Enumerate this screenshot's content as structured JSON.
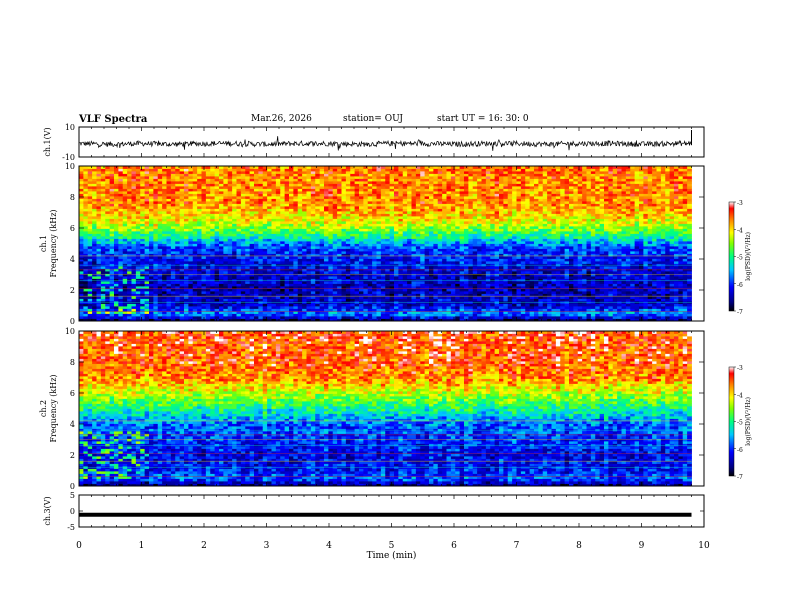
{
  "header": {
    "title": "VLF Spectra",
    "date": "Mar.26, 2026",
    "station": "station= OUJ",
    "start": "start  UT  =   16: 30: 0"
  },
  "chart_data": [
    {
      "type": "line",
      "panel": "waveform-ch1",
      "ylabel": "ch.1(V)",
      "ylim": [
        -10,
        10
      ],
      "yticks": [
        -10,
        10
      ],
      "xlim": [
        0,
        10
      ],
      "x": [
        0,
        0.5,
        1,
        1.5,
        2,
        2.5,
        3,
        3.5,
        4,
        4.5,
        5,
        5.5,
        6,
        6.5,
        7,
        7.5,
        8,
        8.5,
        9,
        9.5,
        9.8
      ],
      "values": [
        -1,
        -1.5,
        -1,
        -1.5,
        -1,
        -1,
        -1.5,
        -1,
        -1,
        -1.5,
        -1,
        -1,
        -1.5,
        -1,
        -1,
        -1.5,
        -1,
        -1,
        -1.5,
        -1,
        -1
      ]
    },
    {
      "type": "heatmap",
      "panel": "spectrogram-ch1",
      "ylabel": "ch.1\nFrequency (kHz)",
      "ylim": [
        0,
        10
      ],
      "yticks": [
        0,
        2,
        4,
        6,
        8,
        10
      ],
      "xlim": [
        0,
        10
      ],
      "x_end": 9.8,
      "colorbar": {
        "label": "log(PSD)(V²/Hz)",
        "range": [
          -7,
          -3
        ],
        "ticks": [
          -3,
          -4,
          -5,
          -6,
          -7
        ]
      },
      "profile": [
        {
          "f": 0,
          "v": -6.8
        },
        {
          "f": 0.5,
          "v": -5.6
        },
        {
          "f": 1,
          "v": -6.3
        },
        {
          "f": 2,
          "v": -6.4
        },
        {
          "f": 3,
          "v": -6.3
        },
        {
          "f": 4,
          "v": -6.1
        },
        {
          "f": 4.8,
          "v": -5.9
        },
        {
          "f": 5.5,
          "v": -5.0
        },
        {
          "f": 6,
          "v": -4.5
        },
        {
          "f": 6.5,
          "v": -4.1
        },
        {
          "f": 7.5,
          "v": -3.7
        },
        {
          "f": 10,
          "v": -3.6
        }
      ]
    },
    {
      "type": "heatmap",
      "panel": "spectrogram-ch2",
      "ylabel": "ch.2\nFrequency (kHz)",
      "ylim": [
        0,
        10
      ],
      "yticks": [
        0,
        2,
        4,
        6,
        8,
        10
      ],
      "xlim": [
        0,
        10
      ],
      "x_end": 9.8,
      "colorbar": {
        "label": "log(PSD)(V²/Hz)",
        "range": [
          -7,
          -3
        ],
        "ticks": [
          -3,
          -4,
          -5,
          -6,
          -7
        ]
      },
      "profile": [
        {
          "f": 0,
          "v": -6.7
        },
        {
          "f": 0.5,
          "v": -5.8
        },
        {
          "f": 1,
          "v": -6.1
        },
        {
          "f": 2,
          "v": -6.2
        },
        {
          "f": 3,
          "v": -6.0
        },
        {
          "f": 4,
          "v": -5.8
        },
        {
          "f": 4.8,
          "v": -5.2
        },
        {
          "f": 5.5,
          "v": -4.7
        },
        {
          "f": 6,
          "v": -4.3
        },
        {
          "f": 7,
          "v": -3.7
        },
        {
          "f": 8,
          "v": -3.5
        },
        {
          "f": 10,
          "v": -3.4
        }
      ]
    },
    {
      "type": "line",
      "panel": "waveform-ch3",
      "ylabel": "ch.3(V)",
      "ylim": [
        -5,
        5
      ],
      "yticks": [
        -5,
        0,
        5
      ],
      "xlim": [
        0,
        10
      ],
      "xlabel": "Time (min)",
      "xticks": [
        0,
        1,
        2,
        3,
        4,
        5,
        6,
        7,
        8,
        9,
        10
      ],
      "x": [
        0,
        9.8
      ],
      "values": [
        -1.2,
        -1.2
      ]
    }
  ]
}
